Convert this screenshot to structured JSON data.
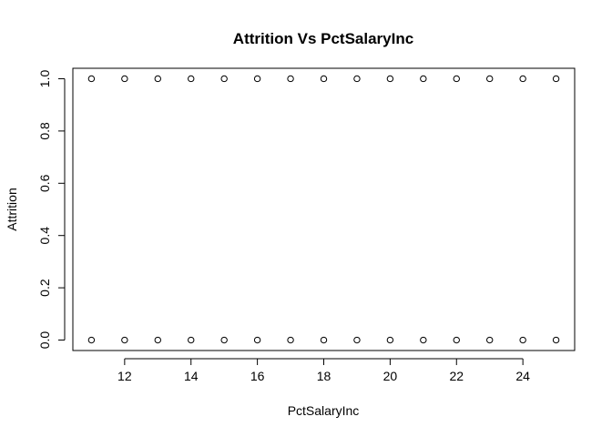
{
  "chart_data": {
    "type": "scatter",
    "title": "Attrition Vs PctSalaryInc",
    "xlabel": "PctSalaryInc",
    "ylabel": "Attrition",
    "xlim": [
      10.44,
      25.56
    ],
    "ylim": [
      -0.04,
      1.04
    ],
    "x_ticks": [
      12,
      14,
      16,
      18,
      20,
      22,
      24
    ],
    "y_ticks": [
      0.0,
      0.2,
      0.4,
      0.6,
      0.8,
      1.0
    ],
    "x_tick_labels": [
      "12",
      "14",
      "16",
      "18",
      "20",
      "22",
      "24"
    ],
    "y_tick_labels": [
      "0.0",
      "0.2",
      "0.4",
      "0.6",
      "0.8",
      "1.0"
    ],
    "grid": false,
    "marker": "open-circle",
    "points": [
      {
        "x": 11,
        "y": 0
      },
      {
        "x": 12,
        "y": 0
      },
      {
        "x": 13,
        "y": 0
      },
      {
        "x": 14,
        "y": 0
      },
      {
        "x": 15,
        "y": 0
      },
      {
        "x": 16,
        "y": 0
      },
      {
        "x": 17,
        "y": 0
      },
      {
        "x": 18,
        "y": 0
      },
      {
        "x": 19,
        "y": 0
      },
      {
        "x": 20,
        "y": 0
      },
      {
        "x": 21,
        "y": 0
      },
      {
        "x": 22,
        "y": 0
      },
      {
        "x": 23,
        "y": 0
      },
      {
        "x": 24,
        "y": 0
      },
      {
        "x": 25,
        "y": 0
      },
      {
        "x": 11,
        "y": 1
      },
      {
        "x": 12,
        "y": 1
      },
      {
        "x": 13,
        "y": 1
      },
      {
        "x": 14,
        "y": 1
      },
      {
        "x": 15,
        "y": 1
      },
      {
        "x": 16,
        "y": 1
      },
      {
        "x": 17,
        "y": 1
      },
      {
        "x": 18,
        "y": 1
      },
      {
        "x": 19,
        "y": 1
      },
      {
        "x": 20,
        "y": 1
      },
      {
        "x": 21,
        "y": 1
      },
      {
        "x": 22,
        "y": 1
      },
      {
        "x": 23,
        "y": 1
      },
      {
        "x": 24,
        "y": 1
      },
      {
        "x": 25,
        "y": 1
      }
    ]
  }
}
